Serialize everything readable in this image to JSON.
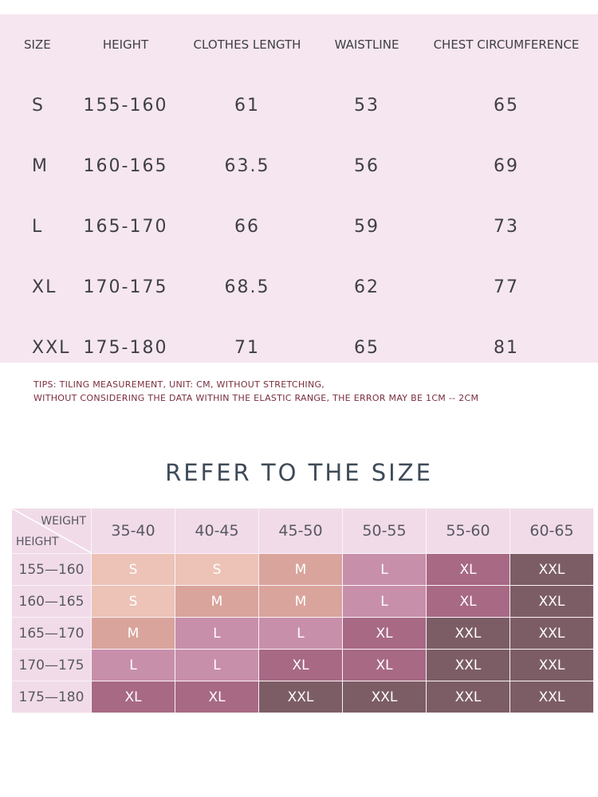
{
  "size_table": {
    "headers": [
      "SIZE",
      "HEIGHT",
      "CLOTHES LENGTH",
      "WAISTLINE",
      "CHEST CIRCUMFERENCE"
    ],
    "rows": [
      [
        "S",
        "155-160",
        "61",
        "53",
        "65"
      ],
      [
        "M",
        "160-165",
        "63.5",
        "56",
        "69"
      ],
      [
        "L",
        "165-170",
        "66",
        "59",
        "73"
      ],
      [
        "XL",
        "170-175",
        "68.5",
        "62",
        "77"
      ],
      [
        "XXL",
        "175-180",
        "71",
        "65",
        "81"
      ]
    ]
  },
  "tips": {
    "line1": "TIPS: TILING MEASUREMENT, UNIT: CM, WITHOUT STRETCHING,",
    "line2": "WITHOUT CONSIDERING THE DATA WITHIN THE ELASTIC RANGE, THE ERROR MAY BE 1CM -- 2CM"
  },
  "refer": {
    "title": "REFER TO THE SIZE",
    "corner_weight": "WEIGHT",
    "corner_height": "HEIGHT",
    "weights": [
      "35-40",
      "40-45",
      "45-50",
      "50-55",
      "55-60",
      "60-65"
    ],
    "rows": [
      {
        "height": "155—160",
        "sizes": [
          "S",
          "S",
          "M",
          "L",
          "XL",
          "XXL"
        ]
      },
      {
        "height": "160—165",
        "sizes": [
          "S",
          "M",
          "M",
          "L",
          "XL",
          "XXL"
        ]
      },
      {
        "height": "165—170",
        "sizes": [
          "M",
          "L",
          "L",
          "XL",
          "XXL",
          "XXL"
        ]
      },
      {
        "height": "170—175",
        "sizes": [
          "L",
          "L",
          "XL",
          "XL",
          "XXL",
          "XXL"
        ]
      },
      {
        "height": "175—180",
        "sizes": [
          "XL",
          "XL",
          "XXL",
          "XXL",
          "XXL",
          "XXL"
        ]
      }
    ],
    "colors": {
      "S": "#ecc3b6",
      "M": "#d9a49c",
      "L": "#c88fab",
      "XL": "#a86985",
      "XXL": "#7c5d66"
    },
    "cell_colors": [
      [
        "#ecc3b6",
        "#ecc3b6",
        "#d9a49c",
        "#c88fab",
        "#a86985",
        "#7c5d66"
      ],
      [
        "#ecc3b6",
        "#d9a49c",
        "#d9a49c",
        "#c88fab",
        "#a86985",
        "#7c5d66"
      ],
      [
        "#d9a49c",
        "#c88fab",
        "#c88fab",
        "#a86985",
        "#7c5d66",
        "#7c5d66"
      ],
      [
        "#c88fab",
        "#c88fab",
        "#a86985",
        "#a86985",
        "#7c5d66",
        "#7c5d66"
      ],
      [
        "#a86985",
        "#a86985",
        "#7c5d66",
        "#7c5d66",
        "#7c5d66",
        "#7c5d66"
      ]
    ]
  }
}
